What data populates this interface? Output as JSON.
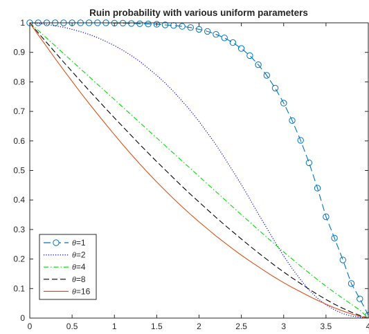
{
  "chart_data": {
    "type": "line",
    "title": "Ruin probability with various uniform parameters",
    "xlabel": "",
    "ylabel": "",
    "xlim": [
      0,
      4
    ],
    "ylim": [
      0,
      1
    ],
    "x_ticks": [
      "0",
      "0.5",
      "1",
      "1.5",
      "2",
      "2.5",
      "3",
      "3.5",
      "4"
    ],
    "y_ticks": [
      "0",
      "0.1",
      "0.2",
      "0.3",
      "0.4",
      "0.5",
      "0.6",
      "0.7",
      "0.8",
      "0.9",
      "1"
    ],
    "grid": false,
    "legend_position": "bottom-left",
    "x": [
      0,
      0.1,
      0.2,
      0.3,
      0.4,
      0.5,
      0.6,
      0.7,
      0.8,
      0.9,
      1.0,
      1.1,
      1.2,
      1.3,
      1.4,
      1.5,
      1.6,
      1.7,
      1.8,
      1.9,
      2.0,
      2.1,
      2.2,
      2.3,
      2.4,
      2.5,
      2.6,
      2.7,
      2.8,
      2.9,
      3.0,
      3.1,
      3.2,
      3.3,
      3.4,
      3.5,
      3.6,
      3.7,
      3.8,
      3.9,
      4.0
    ],
    "series": [
      {
        "name": "θ=1",
        "label_prefix": "θ",
        "label_suffix": "=1",
        "color": "#0072bd",
        "style": "dash-circle",
        "values": [
          1,
          1,
          1,
          1,
          1,
          1,
          1,
          1,
          1,
          1,
          0.999,
          0.999,
          0.998,
          0.997,
          0.996,
          0.995,
          0.993,
          0.991,
          0.988,
          0.984,
          0.978,
          0.971,
          0.961,
          0.949,
          0.933,
          0.913,
          0.889,
          0.858,
          0.822,
          0.779,
          0.728,
          0.669,
          0.602,
          0.526,
          0.44,
          0.343,
          0.271,
          0.197,
          0.117,
          0.065,
          0.01
        ]
      },
      {
        "name": "θ=2",
        "label_prefix": "θ",
        "label_suffix": "=2",
        "color": "#0000ff",
        "style": "dotted",
        "values": [
          1,
          0.998,
          0.995,
          0.99,
          0.985,
          0.978,
          0.97,
          0.961,
          0.95,
          0.937,
          0.923,
          0.907,
          0.889,
          0.869,
          0.846,
          0.822,
          0.796,
          0.767,
          0.735,
          0.702,
          0.666,
          0.627,
          0.587,
          0.543,
          0.498,
          0.452,
          0.403,
          0.353,
          0.305,
          0.257,
          0.21,
          0.168,
          0.13,
          0.095,
          0.067,
          0.045,
          0.028,
          0.015,
          0.007,
          0.003,
          0
        ]
      },
      {
        "name": "θ=4",
        "label_prefix": "θ",
        "label_suffix": "=4",
        "color": "#00dd00",
        "style": "dashdot",
        "values": [
          1,
          0.974,
          0.948,
          0.922,
          0.896,
          0.87,
          0.844,
          0.818,
          0.792,
          0.766,
          0.74,
          0.714,
          0.688,
          0.662,
          0.636,
          0.61,
          0.584,
          0.558,
          0.532,
          0.506,
          0.48,
          0.454,
          0.428,
          0.402,
          0.376,
          0.35,
          0.325,
          0.299,
          0.274,
          0.249,
          0.224,
          0.2,
          0.176,
          0.153,
          0.13,
          0.108,
          0.087,
          0.067,
          0.047,
          0.027,
          0
        ]
      },
      {
        "name": "θ=8",
        "label_prefix": "θ",
        "label_suffix": "=8",
        "color": "#000000",
        "style": "dashed",
        "values": [
          1,
          0.966,
          0.933,
          0.9,
          0.867,
          0.835,
          0.803,
          0.771,
          0.74,
          0.709,
          0.678,
          0.648,
          0.618,
          0.588,
          0.559,
          0.53,
          0.502,
          0.474,
          0.446,
          0.419,
          0.393,
          0.367,
          0.341,
          0.316,
          0.292,
          0.268,
          0.244,
          0.221,
          0.199,
          0.177,
          0.156,
          0.136,
          0.117,
          0.098,
          0.08,
          0.063,
          0.047,
          0.033,
          0.02,
          0.009,
          0
        ]
      },
      {
        "name": "θ=16",
        "label_prefix": "θ",
        "label_suffix": "=16",
        "color": "#d95319",
        "style": "solid",
        "values": [
          1,
          0.959,
          0.919,
          0.879,
          0.84,
          0.802,
          0.764,
          0.727,
          0.691,
          0.656,
          0.621,
          0.587,
          0.554,
          0.522,
          0.491,
          0.461,
          0.432,
          0.404,
          0.377,
          0.351,
          0.326,
          0.302,
          0.278,
          0.256,
          0.234,
          0.213,
          0.193,
          0.174,
          0.155,
          0.137,
          0.12,
          0.104,
          0.089,
          0.074,
          0.06,
          0.047,
          0.035,
          0.024,
          0.014,
          0.006,
          0
        ]
      }
    ]
  }
}
